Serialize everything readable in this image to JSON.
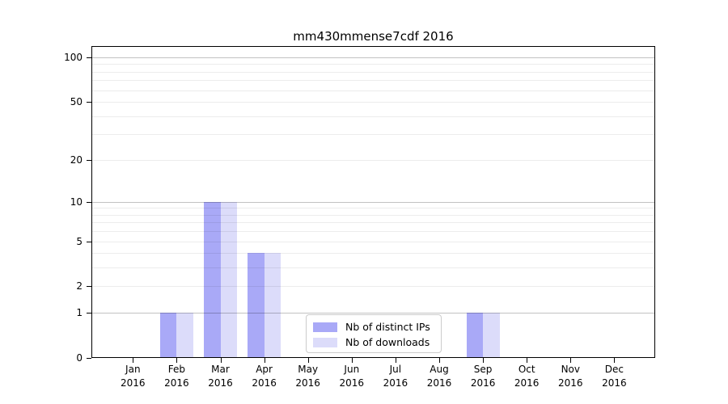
{
  "chart_data": {
    "type": "bar",
    "title": "mm430mmense7cdf 2016",
    "categories": [
      "Jan",
      "Feb",
      "Mar",
      "Apr",
      "May",
      "Jun",
      "Jul",
      "Aug",
      "Sep",
      "Oct",
      "Nov",
      "Dec"
    ],
    "year_label": "2016",
    "series": [
      {
        "name": "Nb of distinct IPs",
        "color": "#a9a9f7",
        "values": [
          0,
          1,
          10,
          4,
          0,
          0,
          0,
          0,
          1,
          0,
          0,
          0
        ]
      },
      {
        "name": "Nb of downloads",
        "color": "#dcdcfa",
        "values": [
          0,
          1,
          10,
          4,
          0,
          0,
          0,
          0,
          1,
          0,
          0,
          0
        ]
      }
    ],
    "y_axis": {
      "scale": "log1p",
      "tick_labels": [
        0,
        1,
        2,
        5,
        10,
        20,
        50,
        100
      ],
      "major_gridlines": [
        1,
        10,
        100
      ],
      "minor_gridlines": [
        2,
        3,
        4,
        5,
        6,
        7,
        8,
        9,
        20,
        30,
        40,
        50,
        60,
        70,
        80,
        90
      ],
      "range": [
        0,
        120
      ]
    },
    "x_axis": {
      "label_format": "month-over-year"
    },
    "legend": {
      "position": "lower-center"
    }
  }
}
